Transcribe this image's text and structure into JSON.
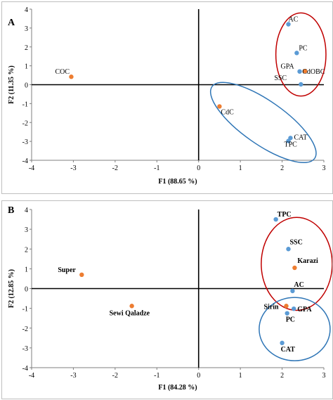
{
  "chart_data": [
    {
      "type": "scatter",
      "panel_label": "A",
      "xlabel": "F1 (88.65 %)",
      "ylabel": "F2 (11.35 %)",
      "xlim": [
        -4,
        3
      ],
      "ylim": [
        -4,
        4
      ],
      "x_ticks": [
        "-4",
        "-3",
        "-2",
        "-1",
        "0",
        "1",
        "2",
        "3"
      ],
      "y_ticks": [
        "-4",
        "-3",
        "-2",
        "-1",
        "0",
        "1",
        "2",
        "3",
        "4"
      ],
      "grid": false,
      "axis_lines_through_origin": true,
      "series": [
        {
          "color": "#5b9bd5",
          "points": [
            {
              "label": "AC",
              "x": 2.15,
              "y": 3.2
            },
            {
              "label": "PC",
              "x": 2.35,
              "y": 1.68
            },
            {
              "label": "GPA",
              "x": 2.42,
              "y": 0.7
            },
            {
              "label": "SSC",
              "x": 2.45,
              "y": 0.02
            },
            {
              "label": "CAT",
              "x": 2.2,
              "y": -2.82
            },
            {
              "label": "TPC",
              "x": 2.15,
              "y": -2.98
            }
          ]
        },
        {
          "color": "#ed7d31",
          "points": [
            {
              "label": "COC",
              "x": -3.05,
              "y": 0.42
            },
            {
              "label": "CdOBC",
              "x": 2.55,
              "y": 0.72
            },
            {
              "label": "CdC",
              "x": 0.5,
              "y": -1.15
            }
          ]
        }
      ],
      "ellipses": [
        {
          "color": "#c00000",
          "center": [
            2.45,
            1.6
          ],
          "rx": 0.6,
          "ry": 2.2,
          "rotation_deg": 0
        },
        {
          "color": "#2e75b6",
          "center": [
            1.55,
            -2.0
          ],
          "rx": 1.5,
          "ry": 1.15,
          "rotation_deg": 35
        }
      ]
    },
    {
      "type": "scatter",
      "panel_label": "B",
      "xlabel": "F1 (84.28 %)",
      "ylabel": "F2 (12.85 %)",
      "xlim": [
        -4,
        3
      ],
      "ylim": [
        -4,
        4
      ],
      "x_ticks": [
        "-4",
        "-3",
        "-2",
        "-1",
        "0",
        "1",
        "2",
        "3"
      ],
      "y_ticks": [
        "-4",
        "-3",
        "-2",
        "-1",
        "0",
        "1",
        "2",
        "3",
        "4"
      ],
      "grid": false,
      "axis_lines_through_origin": true,
      "series": [
        {
          "color": "#5b9bd5",
          "points": [
            {
              "label": "TPC",
              "x": 1.85,
              "y": 3.5
            },
            {
              "label": "SSC",
              "x": 2.15,
              "y": 2.0
            },
            {
              "label": "AC",
              "x": 2.25,
              "y": -0.12
            },
            {
              "label": "GPA",
              "x": 2.28,
              "y": -1.02
            },
            {
              "label": "PC",
              "x": 2.12,
              "y": -1.25
            },
            {
              "label": "CAT",
              "x": 2.0,
              "y": -2.75
            }
          ]
        },
        {
          "color": "#ed7d31",
          "points": [
            {
              "label": "Super",
              "x": -2.8,
              "y": 0.7
            },
            {
              "label": "Sewi Qaladze",
              "x": -1.6,
              "y": -0.88
            },
            {
              "label": "Karazi",
              "x": 2.3,
              "y": 1.05
            },
            {
              "label": "Sirin",
              "x": 2.1,
              "y": -0.88
            }
          ]
        }
      ],
      "ellipses": [
        {
          "color": "#c00000",
          "center": [
            2.35,
            1.25
          ],
          "rx": 0.85,
          "ry": 2.35,
          "rotation_deg": 0
        },
        {
          "color": "#2e75b6",
          "center": [
            2.3,
            -2.05
          ],
          "rx": 0.85,
          "ry": 1.6,
          "rotation_deg": 0
        }
      ]
    }
  ]
}
